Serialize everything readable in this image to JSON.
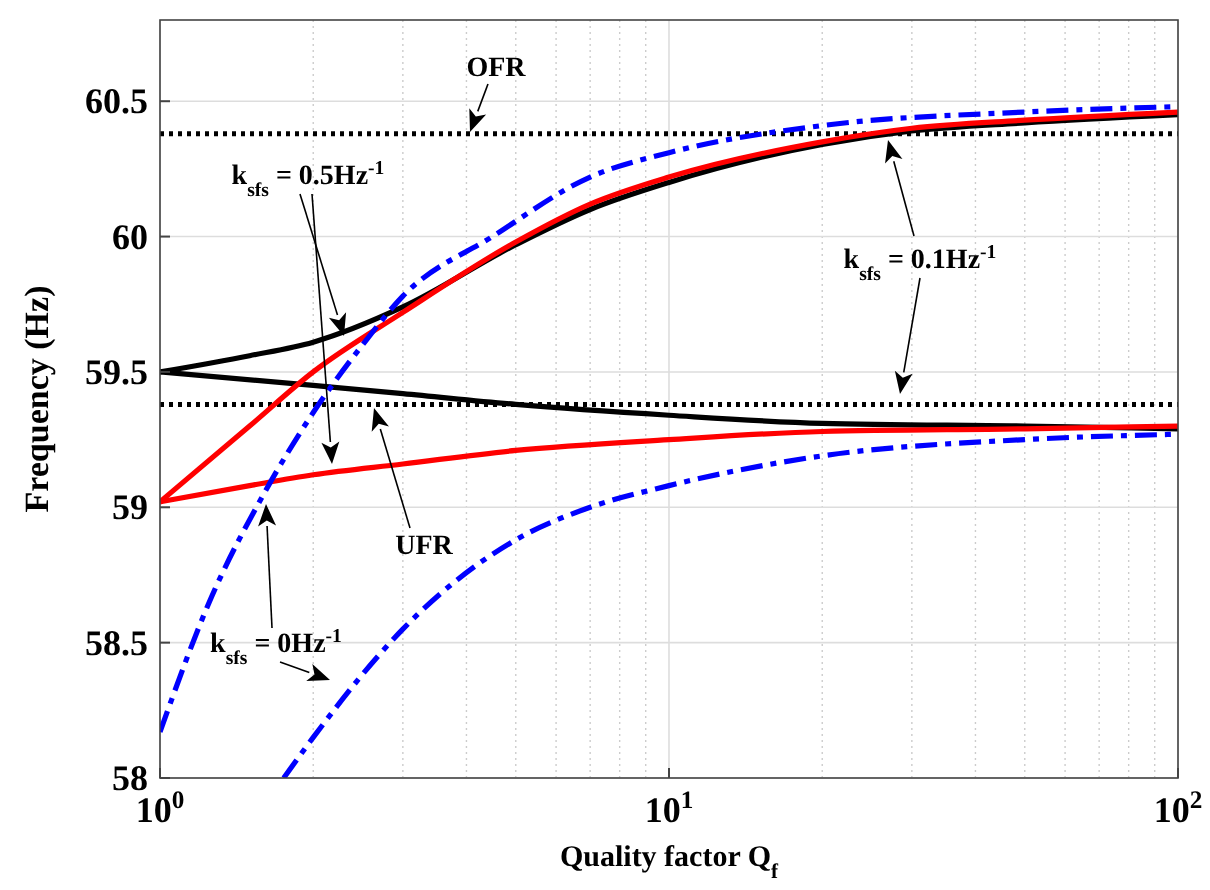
{
  "chart_data": {
    "type": "line",
    "xlabel": "Quality factor  Q$_{f}$",
    "ylabel": "Frequency (Hz)",
    "log": "x",
    "grid": true,
    "xlim": [
      1,
      100
    ],
    "ylim": [
      58,
      60.8
    ],
    "xticks": [
      {
        "value": 1,
        "label": "10$^{0}$"
      },
      {
        "value": 10,
        "label": "10$^{1}$"
      },
      {
        "value": 100,
        "label": "10$^{2}$"
      }
    ],
    "yticks": [
      58,
      58.5,
      59,
      59.5,
      60,
      60.5
    ],
    "series": [
      {
        "color": "#000000",
        "line_style": "solid",
        "x": [
          1,
          1.5,
          2,
          3,
          5,
          7,
          10,
          20,
          30,
          50,
          100
        ],
        "values": [
          59.5,
          59.56,
          59.61,
          59.74,
          59.97,
          60.1,
          60.2,
          60.34,
          60.39,
          60.42,
          60.45
        ]
      },
      {
        "color": "#000000",
        "line_style": "solid",
        "x": [
          1,
          2,
          3,
          5,
          10,
          20,
          50,
          100
        ],
        "values": [
          59.5,
          59.45,
          59.42,
          59.38,
          59.34,
          59.31,
          59.3,
          59.29
        ]
      },
      {
        "color": "#ff0000",
        "line_style": "solid",
        "x": [
          1,
          1.5,
          2,
          3,
          5,
          7,
          10,
          20,
          30,
          50,
          100
        ],
        "values": [
          59.02,
          59.3,
          59.5,
          59.72,
          59.98,
          60.12,
          60.22,
          60.35,
          60.4,
          60.43,
          60.46
        ]
      },
      {
        "color": "#ff0000",
        "line_style": "solid",
        "x": [
          1,
          1.5,
          2,
          3,
          5,
          10,
          20,
          50,
          100
        ],
        "values": [
          59.02,
          59.08,
          59.12,
          59.16,
          59.21,
          59.25,
          59.28,
          59.29,
          59.3
        ]
      },
      {
        "color": "#0000ff",
        "line_style": "dashed",
        "x": [
          1,
          1.25,
          1.6,
          2,
          2.5,
          3,
          4.5,
          7,
          10,
          20,
          50,
          100
        ],
        "values": [
          58.17,
          58.65,
          59.05,
          59.35,
          59.6,
          59.78,
          60.0,
          60.22,
          60.31,
          60.41,
          60.46,
          60.48
        ]
      },
      {
        "color": "#0000ff",
        "line_style": "dashed",
        "x": [
          1.75,
          2,
          3,
          5,
          7,
          10,
          20,
          50,
          100
        ],
        "values": [
          58,
          58.15,
          58.55,
          58.88,
          59.0,
          59.08,
          59.19,
          59.25,
          59.27
        ]
      }
    ],
    "ref_lines": [
      {
        "axis": "y",
        "value": 60.38,
        "color": "#000000",
        "line_style": "dotted"
      },
      {
        "axis": "y",
        "value": 59.38,
        "color": "#000000",
        "line_style": "dotted"
      }
    ],
    "annotations": [
      "OFR",
      "k$_{sfs}$ = 0.5Hz$^{-1}$",
      "k$_{sfs}$ = 0.1Hz$^{-1}$",
      "UFR",
      "k$_{sfs}$ = 0Hz$^{-1}$"
    ]
  }
}
